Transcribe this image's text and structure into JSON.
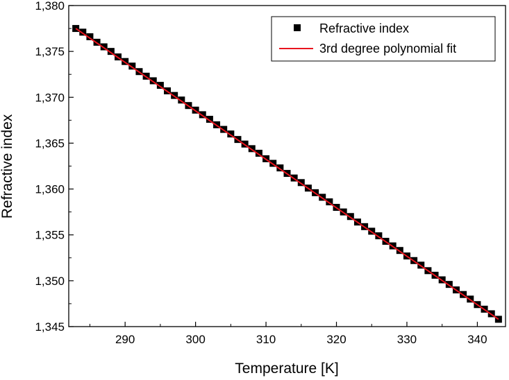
{
  "chart_data": {
    "type": "scatter",
    "title": "",
    "xlabel": "Temperature [K]",
    "ylabel": "Refractive index",
    "xlim": [
      282,
      344
    ],
    "ylim": [
      1.345,
      1.38
    ],
    "x_ticks": [
      290,
      300,
      310,
      320,
      330,
      340
    ],
    "x_tick_labels": [
      "290",
      "300",
      "310",
      "320",
      "330",
      "340"
    ],
    "y_ticks": [
      1.345,
      1.35,
      1.355,
      1.36,
      1.365,
      1.37,
      1.375,
      1.38
    ],
    "y_tick_labels": [
      "1,345",
      "1,350",
      "1,355",
      "1,360",
      "1,365",
      "1,370",
      "1,375",
      "1,380"
    ],
    "grid": false,
    "legend_position": "top-right",
    "series": [
      {
        "name": "Refractive index",
        "kind": "scatter",
        "marker": "square",
        "color": "#000000",
        "x": [
          283,
          284,
          285,
          286,
          287,
          288,
          289,
          290,
          291,
          292,
          293,
          294,
          295,
          296,
          297,
          298,
          299,
          300,
          301,
          302,
          303,
          304,
          305,
          306,
          307,
          308,
          309,
          310,
          311,
          312,
          313,
          314,
          315,
          316,
          317,
          318,
          319,
          320,
          321,
          322,
          323,
          324,
          325,
          326,
          327,
          328,
          329,
          330,
          331,
          332,
          333,
          334,
          335,
          336,
          337,
          338,
          339,
          340,
          341,
          342,
          343
        ],
        "y": [
          1.3775,
          1.3771,
          1.3766,
          1.376,
          1.3755,
          1.375,
          1.3744,
          1.3739,
          1.3734,
          1.3728,
          1.3723,
          1.3718,
          1.3713,
          1.3707,
          1.3702,
          1.3697,
          1.3691,
          1.3686,
          1.3681,
          1.3676,
          1.367,
          1.3665,
          1.366,
          1.3654,
          1.3649,
          1.3644,
          1.3639,
          1.3633,
          1.3628,
          1.3623,
          1.3617,
          1.3612,
          1.3607,
          1.3601,
          1.3596,
          1.3591,
          1.3586,
          1.358,
          1.3575,
          1.357,
          1.3564,
          1.3559,
          1.3554,
          1.3549,
          1.3543,
          1.3538,
          1.3533,
          1.3527,
          1.3522,
          1.3517,
          1.3511,
          1.3506,
          1.3501,
          1.3496,
          1.349,
          1.3485,
          1.348,
          1.3474,
          1.3469,
          1.3464,
          1.3458
        ]
      },
      {
        "name": "3rd degree polynomial fit",
        "kind": "line",
        "color": "#e8141e",
        "x": [
          283,
          343
        ],
        "y": [
          1.3775,
          1.3458
        ]
      }
    ]
  }
}
